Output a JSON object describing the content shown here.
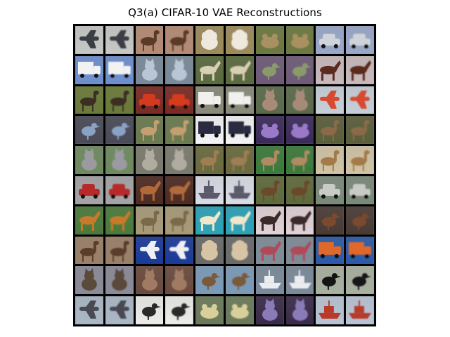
{
  "figure": {
    "title": "Q3(a) CIFAR-10 VAE Reconstructions"
  },
  "grid": {
    "rows": 10,
    "cols": 10,
    "pairing": "original image followed by its reconstruction",
    "pairs": [
      [
        "airplane",
        "deer",
        "dog",
        "frog",
        "car"
      ],
      [
        "truck",
        "cat",
        "horse",
        "bird",
        "horse"
      ],
      [
        "deer",
        "car",
        "truck",
        "cat",
        "airplane"
      ],
      [
        "bird",
        "deer",
        "truck",
        "frog",
        "deer"
      ],
      [
        "cat",
        "cat",
        "deer",
        "deer",
        "deer"
      ],
      [
        "car",
        "horse",
        "ship",
        "deer",
        "car"
      ],
      [
        "horse",
        "deer",
        "horse",
        "horse",
        "bird"
      ],
      [
        "deer",
        "airplane",
        "dog",
        "horse",
        "truck"
      ],
      [
        "cat",
        "cat",
        "bird",
        "ship",
        "bird"
      ],
      [
        "airplane",
        "bird",
        "frog",
        "cat",
        "ship"
      ]
    ],
    "palettes": [
      [
        {
          "bg": "#c6c8c6",
          "fg": "#3c3e45"
        },
        {
          "bg": "#b48a74",
          "fg": "#5a3b27"
        },
        {
          "bg": "#9c8a5a",
          "fg": "#efe8de"
        },
        {
          "bg": "#6b7840",
          "fg": "#a89060"
        },
        {
          "bg": "#98a8c8",
          "fg": "#cfd3da"
        }
      ],
      [
        {
          "bg": "#6d8fd0",
          "fg": "#f2f2f2"
        },
        {
          "bg": "#7a8a9a",
          "fg": "#b9c6d4"
        },
        {
          "bg": "#5a6a3e",
          "fg": "#d8cfb6"
        },
        {
          "bg": "#6e5a78",
          "fg": "#8a9a6a"
        },
        {
          "bg": "#c9b9bc",
          "fg": "#5a2a1e"
        }
      ],
      [
        {
          "bg": "#6a7a38",
          "fg": "#3a2f22"
        },
        {
          "bg": "#7a2a22",
          "fg": "#d53a1e"
        },
        {
          "bg": "#8a8a7a",
          "fg": "#f0f0ec"
        },
        {
          "bg": "#5a6a4a",
          "fg": "#a88a78"
        },
        {
          "bg": "#c6cfd8",
          "fg": "#d84a30"
        }
      ],
      [
        {
          "bg": "#4a4a58",
          "fg": "#8aa2c4"
        },
        {
          "bg": "#6a7a4e",
          "fg": "#c4a070"
        },
        {
          "bg": "#f4f4f6",
          "fg": "#2a2a40"
        },
        {
          "bg": "#3a2a5a",
          "fg": "#9a7ac8"
        },
        {
          "bg": "#5a5e3a",
          "fg": "#8a6a48"
        }
      ],
      [
        {
          "bg": "#6e8a5e",
          "fg": "#9a9aa0"
        },
        {
          "bg": "#7a7a6e",
          "fg": "#b0aca0"
        },
        {
          "bg": "#6a6a3e",
          "fg": "#9e7e52"
        },
        {
          "bg": "#3a7a3a",
          "fg": "#b08a62"
        },
        {
          "bg": "#d0c4a4",
          "fg": "#a47a4a"
        }
      ],
      [
        {
          "bg": "#a4a4a6",
          "fg": "#b82a2a"
        },
        {
          "bg": "#4e2a22",
          "fg": "#b06a3a"
        },
        {
          "bg": "#dadce6",
          "fg": "#5a5a6a"
        },
        {
          "bg": "#5e6a3a",
          "fg": "#6a4a2a"
        },
        {
          "bg": "#7a8a7a",
          "fg": "#c8cbc6"
        }
      ],
      [
        {
          "bg": "#4a7a3a",
          "fg": "#c67a2a"
        },
        {
          "bg": "#a89a78",
          "fg": "#7a6a4a"
        },
        {
          "bg": "#2aa2b8",
          "fg": "#efe6cc"
        },
        {
          "bg": "#e0d2d6",
          "fg": "#3a2a2a"
        },
        {
          "bg": "#4a3a34",
          "fg": "#7a4a2e"
        }
      ],
      [
        {
          "bg": "#9a8068",
          "fg": "#5a3e2a"
        },
        {
          "bg": "#1a3a9a",
          "fg": "#f0f0f2"
        },
        {
          "bg": "#6a6a6a",
          "fg": "#d6c4a4"
        },
        {
          "bg": "#7e8c98",
          "fg": "#b04a5a"
        },
        {
          "bg": "#2a5aa8",
          "fg": "#e0682a"
        }
      ],
      [
        {
          "bg": "#8a8a98",
          "fg": "#5a4a3a"
        },
        {
          "bg": "#6a4a3e",
          "fg": "#a07a62"
        },
        {
          "bg": "#7a9ab8",
          "fg": "#7a5a3a"
        },
        {
          "bg": "#7a8a9a",
          "fg": "#eaecf0"
        },
        {
          "bg": "#a8b0a0",
          "fg": "#141414"
        }
      ],
      [
        {
          "bg": "#aab8c6",
          "fg": "#4a4a52"
        },
        {
          "bg": "#ecece8",
          "fg": "#2a2a2a"
        },
        {
          "bg": "#6a7a5a",
          "fg": "#d8cf9a"
        },
        {
          "bg": "#3a2a4a",
          "fg": "#8a7ab8"
        },
        {
          "bg": "#b8c4d4",
          "fg": "#b83a2a"
        }
      ]
    ]
  }
}
